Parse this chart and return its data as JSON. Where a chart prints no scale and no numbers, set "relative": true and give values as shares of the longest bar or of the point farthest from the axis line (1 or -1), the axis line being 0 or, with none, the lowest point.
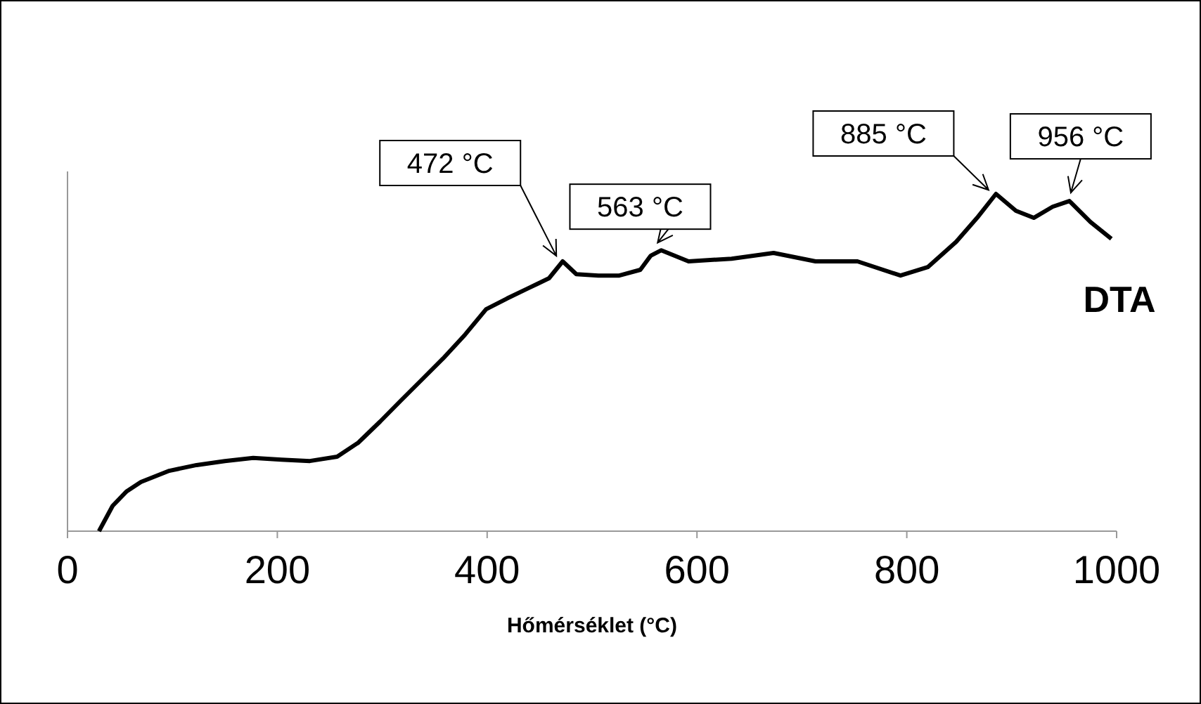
{
  "chart_data": {
    "type": "line",
    "relative": true,
    "xlabel": "Hőmérséklet (°C)",
    "xlim": [
      0,
      1000
    ],
    "xticks": [
      0,
      200,
      400,
      600,
      800,
      1000
    ],
    "grid": false,
    "marker": "none",
    "line_style": "solid",
    "series": [
      {
        "name": "DTA",
        "color": "#000000",
        "x": [
          30,
          43,
          56,
          70,
          97,
          123,
          150,
          177,
          204,
          231,
          257,
          277,
          298,
          318,
          338,
          358,
          379,
          399,
          419,
          439,
          459,
          472,
          485,
          506,
          526,
          546,
          556,
          566,
          592,
          633,
          673,
          713,
          753,
          794,
          820,
          847,
          867,
          885,
          904,
          921,
          939,
          955,
          975,
          995
        ],
        "values": [
          0,
          0.075,
          0.117,
          0.146,
          0.179,
          0.196,
          0.208,
          0.217,
          0.212,
          0.208,
          0.221,
          0.262,
          0.325,
          0.388,
          0.45,
          0.512,
          0.583,
          0.658,
          0.69,
          0.72,
          0.75,
          0.8,
          0.762,
          0.758,
          0.758,
          0.775,
          0.817,
          0.833,
          0.8,
          0.808,
          0.825,
          0.8,
          0.8,
          0.758,
          0.783,
          0.858,
          0.929,
          1,
          0.95,
          0.929,
          0.962,
          0.979,
          0.917,
          0.867
        ]
      }
    ],
    "annotations": [
      {
        "text": "472 °C",
        "x": 472,
        "y": 0.8
      },
      {
        "text": "563 °C",
        "x": 566,
        "y": 0.833
      },
      {
        "text": "885 °C",
        "x": 885,
        "y": 1
      },
      {
        "text": "956 °C",
        "x": 955,
        "y": 0.979
      }
    ]
  }
}
